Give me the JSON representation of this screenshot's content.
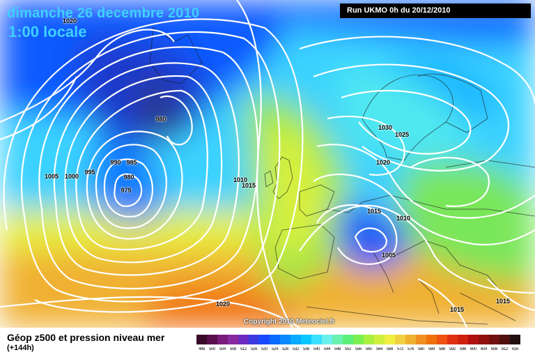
{
  "header": {
    "date_text": "dimanche 26 decembre 2010",
    "time_text": "1:00 locale",
    "run_text": "Run UKMO 0h du 20/12/2010"
  },
  "copyright": "Copyright 2010 Meteociel.fr",
  "footer": {
    "title": "Géop z500 et pression niveau mer",
    "subtitle": "(+144h)"
  },
  "scale": {
    "ticks": [
      "496",
      "500",
      "504",
      "508",
      "512",
      "516",
      "520",
      "524",
      "528",
      "532",
      "536",
      "540",
      "544",
      "548",
      "552",
      "556",
      "560",
      "564",
      "568",
      "572",
      "576",
      "580",
      "584",
      "588",
      "592",
      "596",
      "600",
      "604",
      "608",
      "612",
      "616"
    ],
    "colors": [
      "#3a0a2a",
      "#5a0f4a",
      "#7a1a7a",
      "#8a2aa0",
      "#6a2ac0",
      "#3a3ae0",
      "#1a4aff",
      "#0a6aff",
      "#0a8aff",
      "#0aaaff",
      "#0ac8ff",
      "#3ae0ff",
      "#6af0ea",
      "#6af0b0",
      "#5af07a",
      "#7af050",
      "#aaf040",
      "#d0f040",
      "#f0f040",
      "#f0d040",
      "#f0b030",
      "#f09020",
      "#f07010",
      "#f05010",
      "#e03010",
      "#d02010",
      "#b01010",
      "#901010",
      "#701010",
      "#501010",
      "#201010"
    ]
  },
  "pressure_labels": [
    {
      "text": "980"
    },
    {
      "text": "990"
    },
    {
      "text": "985"
    },
    {
      "text": "980"
    },
    {
      "text": "975"
    },
    {
      "text": "1005"
    },
    {
      "text": "1000"
    },
    {
      "text": "995"
    },
    {
      "text": "1010"
    },
    {
      "text": "1015"
    },
    {
      "text": "1020"
    },
    {
      "text": "1030"
    },
    {
      "text": "1025"
    },
    {
      "text": "1020"
    },
    {
      "text": "1015"
    },
    {
      "text": "1010"
    },
    {
      "text": "1005"
    },
    {
      "text": "1015"
    },
    {
      "text": "1015"
    },
    {
      "text": "1020"
    }
  ]
}
